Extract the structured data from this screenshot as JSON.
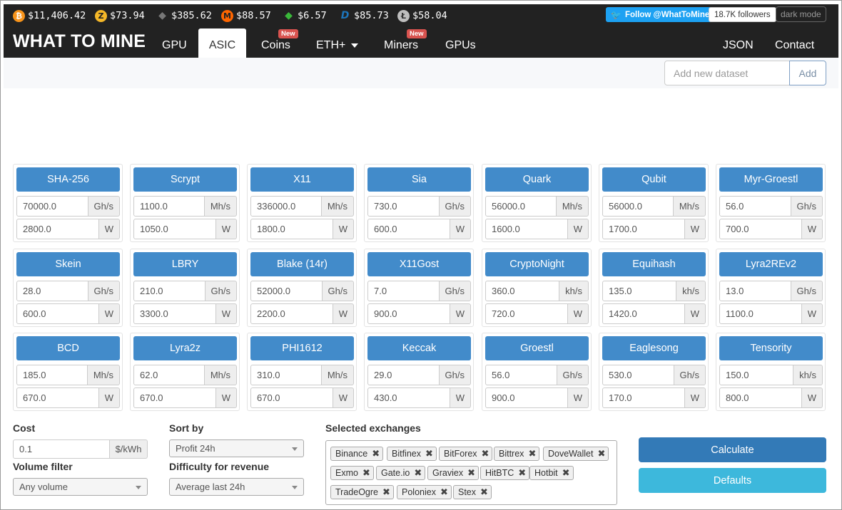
{
  "ticker": [
    {
      "icon": "bitcoin-icon",
      "glyph": "₿",
      "color": "#f7931a",
      "price": "$11,406.42"
    },
    {
      "icon": "zcash-icon",
      "glyph": "Z",
      "color": "#f4b728",
      "price": "$73.94"
    },
    {
      "icon": "ethereum-classic-icon",
      "glyph": "◆",
      "color": "#555555",
      "price": "$385.62"
    },
    {
      "icon": "monero-icon",
      "glyph": "M",
      "color": "#ff6600",
      "price": "$88.57"
    },
    {
      "icon": "ethereum-icon",
      "glyph": "◆",
      "color": "#3ab83a",
      "price": "$6.57"
    },
    {
      "icon": "dash-icon",
      "glyph": "D",
      "color": "#1c75bc",
      "price": "$85.73"
    },
    {
      "icon": "litecoin-icon",
      "glyph": "Ł",
      "color": "#bebebe",
      "price": "$58.04"
    }
  ],
  "social": {
    "follow": "Follow @WhatToMine",
    "followers": "18.7K followers",
    "dark_mode": "dark mode"
  },
  "nav": {
    "brand": "WHAT TO MINE",
    "items": [
      {
        "label": "GPU"
      },
      {
        "label": "ASIC",
        "active": true
      },
      {
        "label": "Coins",
        "badge": "New"
      },
      {
        "label": "ETH+"
      },
      {
        "label": "Miners",
        "badge": "New"
      },
      {
        "label": "GPUs"
      }
    ],
    "right": [
      {
        "label": "JSON"
      },
      {
        "label": "Contact"
      }
    ]
  },
  "dataset": {
    "placeholder": "Add new dataset",
    "add_label": "Add"
  },
  "algorithms": [
    {
      "name": "SHA-256",
      "hashrate": "70000.0",
      "unit": "Gh/s",
      "power": "2800.0",
      "power_unit": "W"
    },
    {
      "name": "Scrypt",
      "hashrate": "1100.0",
      "unit": "Mh/s",
      "power": "1050.0",
      "power_unit": "W"
    },
    {
      "name": "X11",
      "hashrate": "336000.0",
      "unit": "Mh/s",
      "power": "1800.0",
      "power_unit": "W"
    },
    {
      "name": "Sia",
      "hashrate": "730.0",
      "unit": "Gh/s",
      "power": "600.0",
      "power_unit": "W"
    },
    {
      "name": "Quark",
      "hashrate": "56000.0",
      "unit": "Mh/s",
      "power": "1600.0",
      "power_unit": "W"
    },
    {
      "name": "Qubit",
      "hashrate": "56000.0",
      "unit": "Mh/s",
      "power": "1700.0",
      "power_unit": "W"
    },
    {
      "name": "Myr-Groestl",
      "hashrate": "56.0",
      "unit": "Gh/s",
      "power": "700.0",
      "power_unit": "W"
    },
    {
      "name": "Skein",
      "hashrate": "28.0",
      "unit": "Gh/s",
      "power": "600.0",
      "power_unit": "W"
    },
    {
      "name": "LBRY",
      "hashrate": "210.0",
      "unit": "Gh/s",
      "power": "3300.0",
      "power_unit": "W"
    },
    {
      "name": "Blake (14r)",
      "hashrate": "52000.0",
      "unit": "Gh/s",
      "power": "2200.0",
      "power_unit": "W"
    },
    {
      "name": "X11Gost",
      "hashrate": "7.0",
      "unit": "Gh/s",
      "power": "900.0",
      "power_unit": "W"
    },
    {
      "name": "CryptoNight",
      "hashrate": "360.0",
      "unit": "kh/s",
      "power": "720.0",
      "power_unit": "W"
    },
    {
      "name": "Equihash",
      "hashrate": "135.0",
      "unit": "kh/s",
      "power": "1420.0",
      "power_unit": "W"
    },
    {
      "name": "Lyra2REv2",
      "hashrate": "13.0",
      "unit": "Gh/s",
      "power": "1100.0",
      "power_unit": "W"
    },
    {
      "name": "BCD",
      "hashrate": "185.0",
      "unit": "Mh/s",
      "power": "670.0",
      "power_unit": "W"
    },
    {
      "name": "Lyra2z",
      "hashrate": "62.0",
      "unit": "Mh/s",
      "power": "670.0",
      "power_unit": "W"
    },
    {
      "name": "PHI1612",
      "hashrate": "310.0",
      "unit": "Mh/s",
      "power": "670.0",
      "power_unit": "W"
    },
    {
      "name": "Keccak",
      "hashrate": "29.0",
      "unit": "Gh/s",
      "power": "430.0",
      "power_unit": "W"
    },
    {
      "name": "Groestl",
      "hashrate": "56.0",
      "unit": "Gh/s",
      "power": "900.0",
      "power_unit": "W"
    },
    {
      "name": "Eaglesong",
      "hashrate": "530.0",
      "unit": "Gh/s",
      "power": "170.0",
      "power_unit": "W"
    },
    {
      "name": "Tensority",
      "hashrate": "150.0",
      "unit": "kh/s",
      "power": "800.0",
      "power_unit": "W"
    }
  ],
  "form": {
    "cost_label": "Cost",
    "cost_value": "0.1",
    "cost_unit": "$/kWh",
    "volume_label": "Volume filter",
    "volume_value": "Any volume",
    "sort_label": "Sort by",
    "sort_value": "Profit 24h",
    "difficulty_label": "Difficulty for revenue",
    "difficulty_value": "Average last 24h",
    "exchanges_label": "Selected exchanges",
    "exchanges": [
      "Binance",
      "Bitfinex",
      "BitForex",
      "Bittrex",
      "DoveWallet",
      "Exmo",
      "Gate.io",
      "Graviex",
      "HitBTC",
      "Hotbit",
      "TradeOgre",
      "Poloniex",
      "Stex"
    ],
    "calculate_label": "Calculate",
    "defaults_label": "Defaults"
  },
  "colors": {
    "accent": "#428bca",
    "calculate": "#337ab7",
    "defaults": "#3db8dc",
    "badge": "#d9534f",
    "twitter": "#1da1f2"
  }
}
